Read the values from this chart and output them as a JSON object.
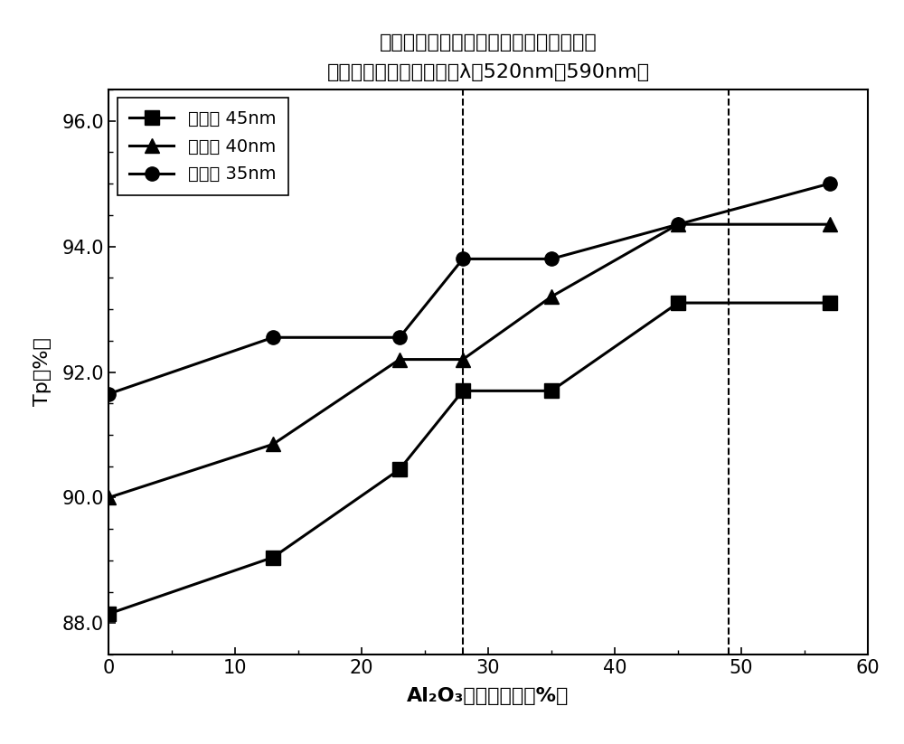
{
  "title_line1": "透射轴透射率特性相对于栅宽度中所占的",
  "title_line2": "氧化物层的宽度的比例（λ＝520nm～590nm）",
  "xlabel": "Al₂O₃栅宽度比例［%］",
  "ylabel": "Tp［%］",
  "series": [
    {
      "label": "栅宽度 45nm",
      "x": [
        0,
        13,
        23,
        28,
        35,
        45,
        57
      ],
      "y": [
        88.15,
        89.05,
        90.45,
        91.7,
        91.7,
        93.1,
        93.1
      ],
      "marker": "s"
    },
    {
      "label": "栅宽度 40nm",
      "x": [
        0,
        13,
        23,
        28,
        35,
        45,
        57
      ],
      "y": [
        90.0,
        90.85,
        92.2,
        92.2,
        93.2,
        94.35,
        94.35
      ],
      "marker": "^"
    },
    {
      "label": "栅宽度 35nm",
      "x": [
        0,
        13,
        23,
        28,
        35,
        45,
        57
      ],
      "y": [
        91.65,
        92.55,
        92.55,
        93.8,
        93.8,
        94.35,
        95.0
      ],
      "marker": "o"
    }
  ],
  "vlines": [
    28,
    49
  ],
  "xlim": [
    0,
    60
  ],
  "ylim": [
    87.5,
    96.5
  ],
  "yticks": [
    88.0,
    90.0,
    92.0,
    94.0,
    96.0
  ],
  "xticks": [
    0,
    10,
    20,
    30,
    40,
    50,
    60
  ],
  "color": "#000000",
  "linewidth": 2.2,
  "markersize": 11,
  "title_fontsize": 16,
  "label_fontsize": 16,
  "tick_fontsize": 15,
  "legend_fontsize": 14
}
